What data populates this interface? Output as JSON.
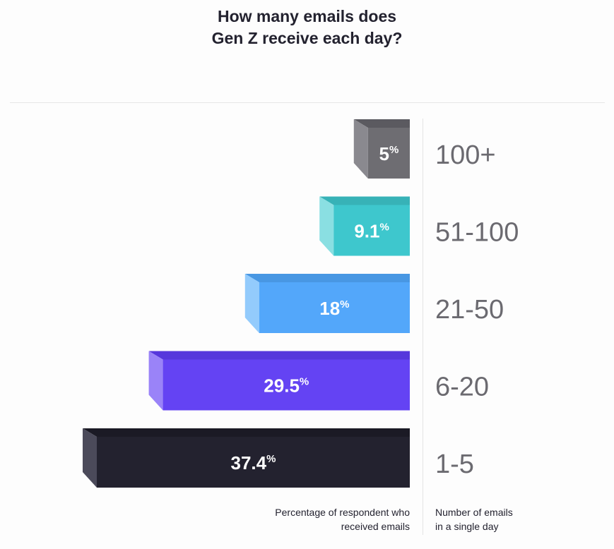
{
  "header": {
    "title_line1": "How many emails does",
    "title_line2": "Gen Z receive each day?"
  },
  "chart_data": {
    "type": "bar",
    "orientation": "horizontal",
    "title": "How many emails does Gen Z receive each day?",
    "categories": [
      "100+",
      "51-100",
      "21-50",
      "6-20",
      "1-5"
    ],
    "values": [
      5,
      9.1,
      18,
      29.5,
      37.4
    ],
    "value_labels": [
      "5",
      "9.1",
      "18",
      "29.5",
      "37.4"
    ],
    "value_suffix": "%",
    "colors": [
      "#6e6d72",
      "#3ec7cd",
      "#53a7fa",
      "#6443f3",
      "#23222f"
    ],
    "side_colors": [
      "#8a898f",
      "#8adfe2",
      "#93cbfc",
      "#9a83f8",
      "#4b4a5a"
    ],
    "top_colors": [
      "#5b5a60",
      "#37b2b7",
      "#4897e3",
      "#5637dc",
      "#1b1a25"
    ],
    "xlabel": "Percentage of respondent who received emails",
    "ylabel": "Number of emails in a single day",
    "xlim": [
      0,
      37.4
    ],
    "grid": false,
    "legend": "none"
  },
  "notes": {
    "left_line1": "Percentage of respondent who",
    "left_line2": "received emails",
    "right_line1": "Number of emails",
    "right_line2": "in a single day"
  }
}
